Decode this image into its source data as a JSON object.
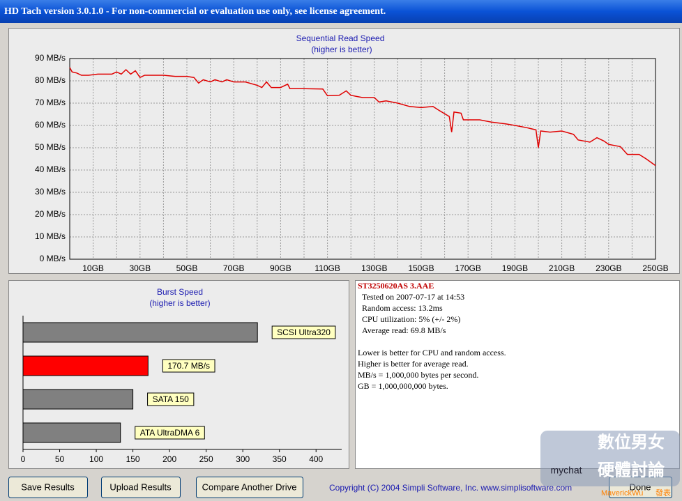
{
  "window": {
    "title": "HD Tach version 3.0.1.0  - For non-commercial or evaluation use only, see license agreement."
  },
  "chart_data": [
    {
      "type": "line",
      "title": "Sequential Read Speed",
      "subtitle": "(higher is better)",
      "x": [
        0,
        1,
        3,
        5,
        8,
        12,
        18,
        20,
        22,
        24,
        26,
        28,
        30,
        32,
        40,
        45,
        50,
        53,
        55,
        57,
        60,
        62,
        65,
        67,
        70,
        75,
        80,
        82,
        84,
        86,
        90,
        93,
        94,
        100,
        108,
        110,
        115,
        118,
        120,
        125,
        130,
        132,
        135,
        140,
        145,
        150,
        155,
        158,
        162,
        163,
        164,
        167,
        168,
        175,
        180,
        186,
        190,
        195,
        199,
        200,
        201,
        205,
        210,
        215,
        217,
        222,
        225,
        228,
        230,
        235,
        238,
        243,
        246,
        250
      ],
      "series": [
        {
          "name": "ST3250620AS 3.AAE",
          "color": "#e00000",
          "values": [
            86,
            84,
            83.5,
            82.5,
            82.5,
            83,
            83,
            84,
            83,
            85,
            83,
            84.5,
            81.5,
            82.5,
            82.5,
            82,
            82,
            81.5,
            79,
            80.5,
            79.5,
            80.5,
            79.5,
            80.5,
            79.5,
            79.5,
            78,
            77,
            79.5,
            77,
            77,
            78.5,
            76.5,
            76.5,
            76.3,
            73.3,
            73.5,
            75.5,
            73.5,
            72.5,
            72.5,
            70.5,
            71,
            70,
            68.5,
            68,
            68.5,
            66.5,
            64,
            57,
            66,
            65.5,
            62.5,
            62.5,
            61.5,
            60.7,
            60,
            59,
            58,
            50,
            57.5,
            57,
            57.5,
            56,
            53.5,
            52.5,
            54.5,
            53,
            51.5,
            50.5,
            47,
            47,
            45,
            42
          ]
        }
      ],
      "xlim": [
        0,
        250
      ],
      "xticks": [
        {
          "value": 10,
          "label": "10GB"
        },
        {
          "value": 30,
          "label": "30GB"
        },
        {
          "value": 50,
          "label": "50GB"
        },
        {
          "value": 70,
          "label": "70GB"
        },
        {
          "value": 90,
          "label": "90GB"
        },
        {
          "value": 110,
          "label": "110GB"
        },
        {
          "value": 130,
          "label": "130GB"
        },
        {
          "value": 150,
          "label": "150GB"
        },
        {
          "value": 170,
          "label": "170GB"
        },
        {
          "value": 190,
          "label": "190GB"
        },
        {
          "value": 210,
          "label": "210GB"
        },
        {
          "value": 230,
          "label": "230GB"
        },
        {
          "value": 250,
          "label": "250GB"
        }
      ],
      "xgrid": [
        10,
        20,
        30,
        40,
        50,
        60,
        70,
        80,
        90,
        100,
        110,
        120,
        130,
        140,
        150,
        160,
        170,
        180,
        190,
        200,
        210,
        220,
        230,
        240
      ],
      "ylim": [
        0,
        90
      ],
      "yticks": [
        {
          "value": 0,
          "label": "0 MB/s"
        },
        {
          "value": 10,
          "label": "10 MB/s"
        },
        {
          "value": 20,
          "label": "20 MB/s"
        },
        {
          "value": 30,
          "label": "30 MB/s"
        },
        {
          "value": 40,
          "label": "40 MB/s"
        },
        {
          "value": 50,
          "label": "50 MB/s"
        },
        {
          "value": 60,
          "label": "60 MB/s"
        },
        {
          "value": 70,
          "label": "70 MB/s"
        },
        {
          "value": 80,
          "label": "80 MB/s"
        },
        {
          "value": 90,
          "label": "90 MB/s"
        }
      ],
      "grid": true
    },
    {
      "type": "bar",
      "orientation": "horizontal",
      "title": "Burst Speed",
      "subtitle": "(higher is better)",
      "categories": [
        "SCSI Ultra320",
        null,
        "SATA 150",
        "ATA UltraDMA 6"
      ],
      "values": [
        320,
        170.7,
        150,
        133
      ],
      "value_labels": [
        null,
        "170.7 MB/s",
        null,
        null
      ],
      "colors": [
        "#808080",
        "#ff0000",
        "#808080",
        "#808080"
      ],
      "xlim": [
        0,
        435
      ],
      "xticks": [
        0,
        50,
        100,
        150,
        200,
        250,
        300,
        350,
        400
      ]
    }
  ],
  "info": {
    "drive": "ST3250620AS 3.AAE",
    "results": [
      "Tested on 2007-07-17 at 14:53",
      "Random access: 13.2ms",
      "CPU utilization: 5% (+/- 2%)",
      "Average read: 69.8 MB/s"
    ],
    "notes": [
      "Lower is better for CPU and random access.",
      "Higher is better for average read.",
      "MB/s = 1,000,000 bytes per second.",
      "GB = 1,000,000,000 bytes."
    ]
  },
  "buttons": [
    "Save Results",
    "Upload Results",
    "Compare Another Drive",
    "Done"
  ],
  "copyright": "Copyright (C) 2004 Simpli Software, Inc. www.simplisoftware.com",
  "watermark": {
    "title": "數位男女",
    "subtitle": "硬體討論",
    "site": "mychat",
    "author": "MaverickWu",
    "action": "發表"
  }
}
